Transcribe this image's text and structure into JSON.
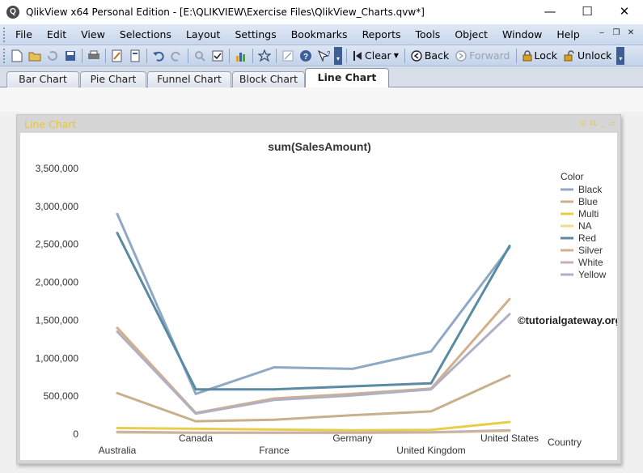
{
  "window": {
    "title": "QlikView x64 Personal Edition - [E:\\QLIKVIEW\\Exercise Files\\QlikView_Charts.qvw*]",
    "app_icon_letter": "Q",
    "minimize": "—",
    "maximize": "☐",
    "close": "✕"
  },
  "menu": {
    "items": [
      "File",
      "Edit",
      "View",
      "Selections",
      "Layout",
      "Settings",
      "Bookmarks",
      "Reports",
      "Tools",
      "Object",
      "Window",
      "Help"
    ],
    "mdi_controls": [
      "–",
      "❐",
      "✕"
    ]
  },
  "toolbar": {
    "clear": "Clear",
    "back": "Back",
    "forward": "Forward",
    "lock": "Lock",
    "unlock": "Unlock"
  },
  "tabs": [
    {
      "label": "Bar Chart",
      "active": false
    },
    {
      "label": "Pie Chart",
      "active": false
    },
    {
      "label": "Funnel Chart",
      "active": false
    },
    {
      "label": "Block Chart",
      "active": false
    },
    {
      "label": "Line Chart",
      "active": true
    }
  ],
  "chart_object": {
    "caption": "Line Chart",
    "caption_color": "#e8c43a",
    "controls": [
      "⊡",
      "XL",
      "_",
      "▭"
    ]
  },
  "watermark": "©tutorialgateway.org",
  "chart_data": {
    "type": "line",
    "title": "sum(SalesAmount)",
    "xlabel": "Country",
    "ylabel": "",
    "categories": [
      "Australia",
      "Canada",
      "France",
      "Germany",
      "United Kingdom",
      "United States"
    ],
    "ylim": [
      0,
      3500000
    ],
    "yticks": [
      0,
      500000,
      1000000,
      1500000,
      2000000,
      2500000,
      3000000,
      3500000
    ],
    "ytick_labels": [
      "0",
      "500,000",
      "1,000,000",
      "1,500,000",
      "2,000,000",
      "2,500,000",
      "3,000,000",
      "3,500,000"
    ],
    "grid": false,
    "legend_title": "Color",
    "legend_position": "right",
    "series": [
      {
        "name": "Black",
        "color": "#8fa8c4",
        "values": [
          2900000,
          530000,
          880000,
          860000,
          1090000,
          2460000
        ]
      },
      {
        "name": "Blue",
        "color": "#c8b08c",
        "values": [
          540000,
          170000,
          190000,
          250000,
          300000,
          770000
        ]
      },
      {
        "name": "Multi",
        "color": "#e8cf4a",
        "values": [
          80000,
          70000,
          60000,
          50000,
          55000,
          160000
        ]
      },
      {
        "name": "NA",
        "color": "#f0dd8a",
        "values": [
          20000,
          15000,
          15000,
          15000,
          20000,
          40000
        ]
      },
      {
        "name": "Red",
        "color": "#5b8aa3",
        "values": [
          2650000,
          590000,
          590000,
          630000,
          670000,
          2480000
        ]
      },
      {
        "name": "Silver",
        "color": "#d2b08a",
        "values": [
          1400000,
          280000,
          470000,
          530000,
          600000,
          1780000
        ]
      },
      {
        "name": "White",
        "color": "#c8b0b0",
        "values": [
          30000,
          20000,
          20000,
          20000,
          25000,
          50000
        ]
      },
      {
        "name": "Yellow",
        "color": "#b0b0c4",
        "values": [
          1350000,
          270000,
          450000,
          510000,
          590000,
          1580000
        ]
      }
    ]
  }
}
